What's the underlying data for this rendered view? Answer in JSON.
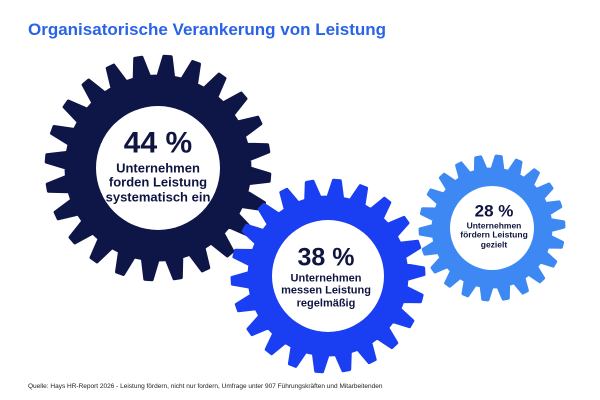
{
  "title": "Organisatorische Verankerung von Leistung",
  "source": "Quelle: Hays HR-Report 2026 - Leistung fördern, nicht nur fordern, Umfrage unter 907 Führungskräften und Mitarbeitenden",
  "chart_data": {
    "type": "infographic",
    "title": "Organisatorische Verankerung von Leistung",
    "items": [
      {
        "value": 44,
        "percent_label": "44 %",
        "lines": [
          "Unternehmen",
          "forden Leistung",
          "systematisch ein"
        ],
        "color": "#0e1547"
      },
      {
        "value": 38,
        "percent_label": "38 %",
        "lines": [
          "Unternehmen",
          "messen Leistung",
          "regelmäßig"
        ],
        "color": "#1a3ef2"
      },
      {
        "value": 28,
        "percent_label": "28 %",
        "lines": [
          "Unternehmen",
          "fördern Leistung",
          "gezielt"
        ],
        "color": "#3d88f2"
      }
    ]
  }
}
